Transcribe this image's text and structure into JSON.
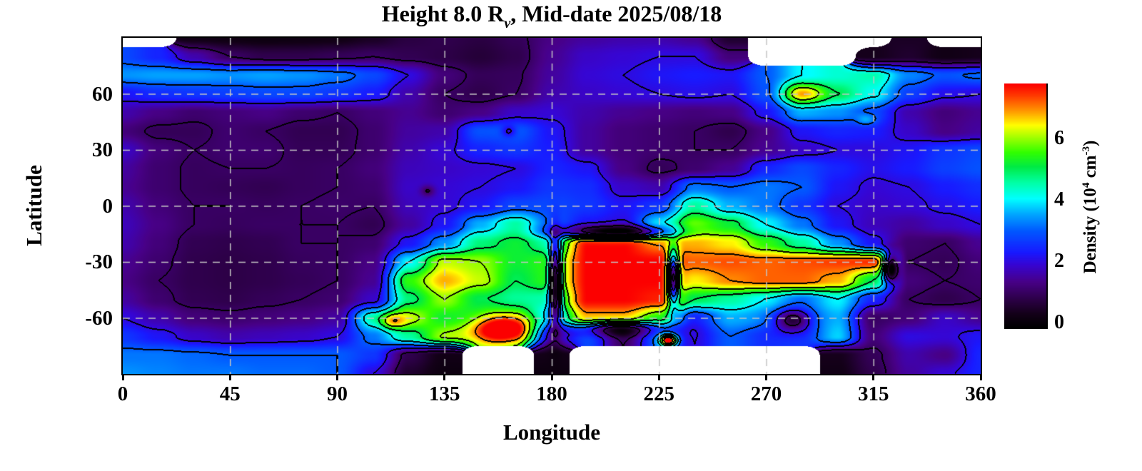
{
  "title": {
    "part1": "Height 8.0 R",
    "subscript": "v",
    "part2": ", Mid-date 2025/08/18"
  },
  "axes": {
    "x_label": "Longitude",
    "y_label": "Latitude",
    "x_tick_values": [
      0,
      45,
      90,
      135,
      180,
      225,
      270,
      315,
      360
    ],
    "y_tick_values": [
      60,
      30,
      0,
      -30,
      -60
    ]
  },
  "colorbar": {
    "tick_values": [
      0,
      2,
      4,
      6
    ],
    "label_parts": {
      "p1": "Density (10",
      "sup1": "4",
      "p2": " cm",
      "sup2": "-3",
      "p3": ")"
    }
  },
  "colormap": [
    [
      0.0,
      [
        0,
        0,
        0
      ]
    ],
    [
      0.06,
      [
        20,
        0,
        25
      ]
    ],
    [
      0.12,
      [
        45,
        0,
        72
      ]
    ],
    [
      0.19,
      [
        72,
        0,
        135
      ]
    ],
    [
      0.26,
      [
        55,
        5,
        210
      ]
    ],
    [
      0.31,
      [
        25,
        25,
        255
      ]
    ],
    [
      0.4,
      [
        0,
        90,
        255
      ]
    ],
    [
      0.47,
      [
        0,
        170,
        255
      ]
    ],
    [
      0.53,
      [
        0,
        255,
        255
      ]
    ],
    [
      0.6,
      [
        0,
        255,
        160
      ]
    ],
    [
      0.66,
      [
        0,
        235,
        70
      ]
    ],
    [
      0.72,
      [
        50,
        255,
        0
      ]
    ],
    [
      0.78,
      [
        160,
        255,
        0
      ]
    ],
    [
      0.83,
      [
        255,
        255,
        0
      ]
    ],
    [
      0.89,
      [
        255,
        150,
        0
      ]
    ],
    [
      0.95,
      [
        255,
        60,
        0
      ]
    ],
    [
      1.0,
      [
        252,
        0,
        0
      ]
    ]
  ],
  "chart_data": {
    "type": "heatmap",
    "title": "Height 8.0 Rv, Mid-date 2025/08/18",
    "xlabel": "Longitude",
    "ylabel": "Latitude",
    "zlabel": "Density (10^4 cm^-3)",
    "x_range": [
      0,
      360
    ],
    "y_range": [
      -90,
      90
    ],
    "z_range": [
      -0.2,
      7.8
    ],
    "contour_levels": [
      1,
      2,
      3,
      4,
      5,
      6,
      7
    ],
    "gridlines": {
      "lon": [
        45,
        90,
        135,
        180,
        225,
        270,
        315
      ],
      "lat": [
        60,
        30,
        0,
        -30,
        -60
      ]
    },
    "grid_lons": [
      0,
      15,
      30,
      45,
      60,
      75,
      90,
      105,
      120,
      135,
      150,
      165,
      180,
      195,
      210,
      225,
      240,
      255,
      270,
      285,
      300,
      315,
      330,
      345,
      360
    ],
    "grid_lats": [
      90,
      80,
      70,
      60,
      50,
      40,
      30,
      20,
      10,
      0,
      -10,
      -20,
      -30,
      -40,
      -50,
      -60,
      -70,
      -80,
      -90
    ],
    "values": [
      [
        null,
        null,
        0.2,
        0.15,
        0.1,
        0.15,
        0.2,
        0.4,
        0.7,
        0.8,
        0.7,
        0.9,
        1.3,
        1.5,
        1.6,
        1.6,
        1.4,
        0.5,
        null,
        null,
        null,
        null,
        0.4,
        null,
        null
      ],
      [
        2.8,
        2.4,
        1.6,
        1.0,
        0.8,
        0.8,
        0.9,
        1.0,
        0.85,
        0.75,
        0.6,
        0.8,
        1.4,
        1.8,
        1.9,
        2.0,
        2.0,
        1.2,
        null,
        null,
        null,
        0.3,
        0.5,
        0.2,
        0.3
      ],
      [
        3.4,
        3.5,
        3.5,
        3.4,
        3.5,
        3.4,
        3.2,
        2.8,
        2.0,
        1.2,
        0.9,
        0.95,
        1.5,
        1.9,
        2.0,
        2.2,
        2.3,
        2.2,
        3.0,
        4.0,
        4.3,
        4.5,
        3.3,
        2.9,
        3.1
      ],
      [
        2.2,
        2.5,
        2.6,
        2.7,
        2.8,
        2.8,
        2.6,
        2.3,
        1.6,
        1.0,
        0.8,
        1.0,
        1.6,
        1.8,
        1.9,
        2.0,
        2.1,
        2.0,
        2.9,
        6.4,
        5.0,
        4.1,
        2.7,
        2.1,
        2.0
      ],
      [
        1.6,
        1.3,
        1.1,
        1.2,
        1.3,
        1.1,
        1.0,
        1.2,
        1.4,
        1.1,
        1.3,
        1.8,
        1.9,
        1.6,
        1.4,
        1.3,
        1.2,
        1.3,
        2.2,
        3.6,
        3.4,
        2.8,
        1.6,
        1.2,
        1.4
      ],
      [
        1.2,
        0.9,
        0.9,
        1.1,
        1.0,
        0.85,
        0.85,
        1.1,
        1.5,
        1.6,
        2.9,
        3.0,
        2.2,
        1.5,
        1.2,
        1.1,
        1.0,
        0.8,
        1.3,
        2.2,
        2.4,
        2.3,
        1.8,
        1.3,
        1.5
      ],
      [
        1.8,
        1.2,
        1.0,
        1.1,
        1.1,
        0.9,
        0.9,
        1.1,
        1.6,
        1.9,
        2.4,
        2.6,
        2.3,
        1.5,
        1.2,
        1.1,
        1.0,
        1.0,
        1.4,
        1.8,
        2.0,
        2.0,
        2.2,
        2.6,
        2.8
      ],
      [
        1.5,
        1.1,
        0.95,
        1.0,
        1.0,
        0.95,
        1.0,
        1.2,
        1.7,
        1.8,
        1.9,
        2.0,
        2.4,
        2.2,
        1.3,
        0.9,
        1.1,
        1.4,
        2.4,
        2.8,
        2.4,
        2.1,
        2.3,
        2.7,
        2.9
      ],
      [
        1.4,
        1.1,
        0.95,
        0.9,
        0.85,
        0.95,
        1.0,
        1.1,
        1.8,
        1.9,
        2.0,
        2.2,
        2.6,
        2.5,
        1.8,
        1.6,
        3.2,
        3.0,
        3.2,
        3.0,
        2.2,
        1.9,
        2.0,
        2.3,
        2.5
      ],
      [
        1.6,
        1.2,
        1.0,
        1.0,
        0.95,
        1.0,
        1.05,
        1.0,
        1.7,
        1.9,
        2.2,
        2.8,
        2.8,
        2.6,
        2.2,
        2.6,
        4.6,
        3.6,
        3.2,
        2.6,
        2.0,
        1.8,
        1.9,
        2.1,
        2.3
      ],
      [
        1.7,
        1.3,
        1.0,
        0.95,
        1.0,
        1.0,
        1.0,
        0.85,
        1.5,
        2.2,
        3.6,
        4.6,
        3.0,
        2.2,
        2.0,
        4.0,
        5.8,
        5.2,
        4.0,
        3.2,
        2.2,
        1.7,
        1.5,
        1.8,
        2.0
      ],
      [
        1.6,
        1.2,
        0.85,
        0.8,
        0.85,
        1.0,
        1.0,
        1.1,
        2.2,
        3.4,
        4.8,
        5.2,
        4.5,
        7.8,
        7.8,
        7.0,
        6.8,
        6.5,
        5.5,
        4.6,
        3.4,
        2.2,
        1.1,
        1.0,
        1.4
      ],
      [
        1.4,
        1.1,
        0.8,
        0.75,
        0.8,
        0.95,
        1.0,
        1.3,
        4.0,
        6.2,
        6.0,
        5.2,
        5.5,
        7.8,
        7.8,
        7.8,
        7.2,
        7.3,
        7.2,
        7.3,
        7.4,
        7.5,
        1.0,
        0.9,
        1.2
      ],
      [
        1.3,
        1.0,
        0.8,
        0.75,
        0.8,
        0.9,
        1.0,
        1.4,
        5.5,
        6.8,
        6.2,
        5.0,
        5.5,
        7.8,
        7.8,
        7.8,
        6.5,
        7.0,
        7.2,
        7.2,
        6.8,
        5.0,
        1.2,
        1.0,
        1.1
      ],
      [
        1.5,
        1.1,
        0.85,
        0.8,
        0.9,
        1.0,
        1.1,
        1.8,
        4.8,
        6.0,
        5.0,
        4.6,
        4.5,
        7.8,
        7.8,
        7.6,
        5.0,
        4.6,
        4.0,
        3.2,
        4.0,
        2.4,
        1.0,
        0.8,
        1.0
      ],
      [
        2.0,
        1.6,
        1.2,
        1.1,
        1.2,
        1.3,
        1.5,
        4.5,
        6.2,
        5.2,
        5.0,
        5.0,
        3.5,
        6.8,
        6.8,
        5.5,
        2.4,
        3.6,
        3.4,
        3.2,
        3.6,
        1.0,
        1.2,
        1.8,
        1.4
      ],
      [
        2.6,
        2.2,
        1.8,
        1.6,
        1.7,
        1.8,
        2.0,
        3.2,
        4.6,
        6.0,
        5.5,
        5.0,
        1.5,
        2.8,
        1.0,
        3.0,
        2.0,
        3.0,
        2.5,
        2.6,
        3.8,
        1.2,
        2.0,
        1.9,
        2.2
      ],
      [
        3.2,
        3.2,
        3.1,
        3.0,
        3.0,
        3.0,
        3.0,
        2.6,
        0.8,
        0.2,
        null,
        null,
        0.2,
        null,
        null,
        null,
        null,
        null,
        null,
        null,
        0.3,
        0.9,
        1.6,
        1.3,
        2.4
      ],
      [
        3.4,
        3.3,
        3.2,
        3.2,
        3.1,
        3.1,
        3.0,
        2.0,
        0.5,
        0.1,
        null,
        null,
        0.1,
        null,
        null,
        null,
        null,
        null,
        null,
        null,
        0.2,
        0.8,
        1.5,
        1.9,
        2.4
      ]
    ],
    "bumps": [
      {
        "lon": 160,
        "lat": -66,
        "amp": 3.8,
        "sx": 13,
        "sy": 8
      },
      {
        "lon": 113,
        "lat": -62,
        "amp": 1.6,
        "sx": 5,
        "sy": 4
      },
      {
        "lon": 229,
        "lat": -72,
        "amp": 5.5,
        "sx": 3.5,
        "sy": 3
      },
      {
        "lon": 281,
        "lat": -61,
        "amp": -2.6,
        "sx": 8,
        "sy": 6
      },
      {
        "lon": 207,
        "lat": -14.5,
        "amp": -4.6,
        "sx": 22,
        "sy": 3.2
      },
      {
        "lon": 208,
        "lat": -65,
        "amp": -3.2,
        "sx": 18,
        "sy": 3.5
      },
      {
        "lon": 231,
        "lat": -38,
        "amp": -6.5,
        "sx": 2.5,
        "sy": 14
      },
      {
        "lon": 181.5,
        "lat": -40,
        "amp": -5.2,
        "sx": 2.5,
        "sy": 21
      },
      {
        "lon": 322,
        "lat": -33,
        "amp": -4.5,
        "sx": 3,
        "sy": 7
      },
      {
        "lon": 162,
        "lat": 40,
        "amp": -1.1,
        "sx": 3,
        "sy": 3
      },
      {
        "lon": 312,
        "lat": 46,
        "amp": 0.9,
        "sx": 4,
        "sy": 3
      },
      {
        "lon": 286,
        "lat": 60,
        "amp": 0.5,
        "sx": 7,
        "sy": 4
      },
      {
        "lon": 128,
        "lat": 8,
        "amp": -0.9,
        "sx": 3,
        "sy": 3
      }
    ]
  }
}
